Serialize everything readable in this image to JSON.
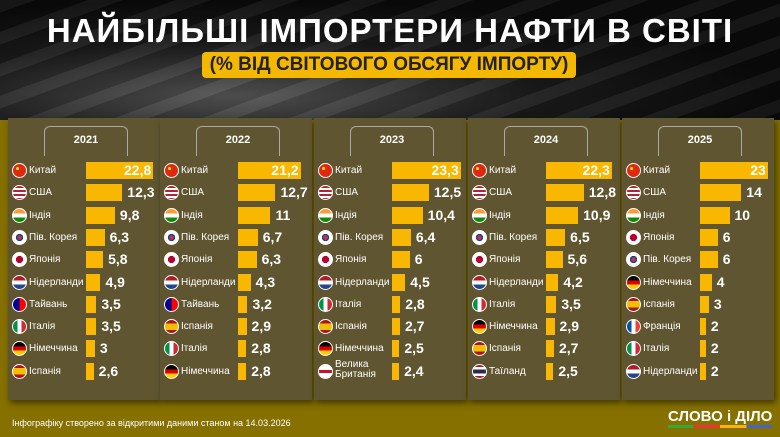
{
  "title": "НАЙБІЛЬШІ ІМПОРТЕРИ НАФТИ В СВІТІ",
  "subtitle": "(% ВІД СВІТОВОГО ОБСЯГУ ІМПОРТУ)",
  "footer": "Інфографіку створено за відкритими даними станом на 14.03.2026",
  "logo": "СЛОВО і ДІЛО",
  "colors": {
    "bar": "#f9b700",
    "panel": "#5f5530",
    "background": "#857000"
  },
  "chart_data": [
    {
      "type": "bar",
      "title": "2021",
      "categories": [
        "Китай",
        "США",
        "Індія",
        "Пів. Корея",
        "Японія",
        "Нідерланди",
        "Тайвань",
        "Італія",
        "Німеччина",
        "Іспанія"
      ],
      "values": [
        22.8,
        12.3,
        9.8,
        6.3,
        5.8,
        4.9,
        3.5,
        3.5,
        3,
        2.6
      ],
      "labels": [
        "22,8",
        "12,3",
        "9,8",
        "6,3",
        "5,8",
        "4,9",
        "3,5",
        "3,5",
        "3",
        "2,6"
      ]
    },
    {
      "type": "bar",
      "title": "2022",
      "categories": [
        "Китай",
        "США",
        "Індія",
        "Пів. Корея",
        "Японія",
        "Нідерланди",
        "Тайвань",
        "Іспанія",
        "Італія",
        "Німеччина"
      ],
      "values": [
        21.2,
        12.7,
        11,
        6.7,
        6.3,
        4.3,
        3.2,
        2.9,
        2.8,
        2.8
      ],
      "labels": [
        "21,2",
        "12,7",
        "11",
        "6,7",
        "6,3",
        "4,3",
        "3,2",
        "2,9",
        "2,8",
        "2,8"
      ]
    },
    {
      "type": "bar",
      "title": "2023",
      "categories": [
        "Китай",
        "США",
        "Індія",
        "Пів. Корея",
        "Японія",
        "Нідерланди",
        "Італія",
        "Іспанія",
        "Німеччина",
        "Велика Британія"
      ],
      "values": [
        23.3,
        12.5,
        10.4,
        6.4,
        6,
        4.5,
        2.8,
        2.7,
        2.5,
        2.4
      ],
      "labels": [
        "23,3",
        "12,5",
        "10,4",
        "6,4",
        "6",
        "4,5",
        "2,8",
        "2,7",
        "2,5",
        "2,4"
      ]
    },
    {
      "type": "bar",
      "title": "2024",
      "categories": [
        "Китай",
        "США",
        "Індія",
        "Пів. Корея",
        "Японія",
        "Нідерланди",
        "Італія",
        "Німеччина",
        "Іспанія",
        "Таїланд"
      ],
      "values": [
        22.3,
        12.8,
        10.9,
        6.5,
        5.6,
        4.2,
        3.5,
        2.9,
        2.7,
        2.5
      ],
      "labels": [
        "22,3",
        "12,8",
        "10,9",
        "6,5",
        "5,6",
        "4,2",
        "3,5",
        "2,9",
        "2,7",
        "2,5"
      ]
    },
    {
      "type": "bar",
      "title": "2025",
      "categories": [
        "Китай",
        "США",
        "Індія",
        "Японія",
        "Пів. Корея",
        "Німеччина",
        "Іспанія",
        "Франція",
        "Італія",
        "Нідерланди"
      ],
      "values": [
        23,
        14,
        10,
        6,
        6,
        4,
        3,
        2,
        2,
        2
      ],
      "labels": [
        "23",
        "14",
        "10",
        "6",
        "6",
        "4",
        "3",
        "2",
        "2",
        "2"
      ]
    }
  ]
}
